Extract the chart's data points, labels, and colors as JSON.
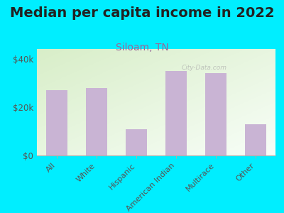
{
  "title": "Median per capita income in 2022",
  "subtitle": "Siloam, TN",
  "categories": [
    "All",
    "White",
    "Hispanic",
    "American Indian",
    "Multirace",
    "Other"
  ],
  "values": [
    27000,
    28000,
    11000,
    35000,
    34000,
    13000
  ],
  "bar_color": "#c9b4d4",
  "background_outer": "#00eeff",
  "title_fontsize": 14,
  "subtitle_fontsize": 10,
  "subtitle_color": "#996699",
  "ylabel_ticks": [
    0,
    20000,
    40000
  ],
  "ylabel_labels": [
    "$0",
    "$20k",
    "$40k"
  ],
  "ylim": [
    0,
    44000
  ],
  "watermark": "City-Data.com",
  "axis_label_color": "#555555",
  "grad_top_left": "#d8eec8",
  "grad_bottom_right": "#f8fef8"
}
